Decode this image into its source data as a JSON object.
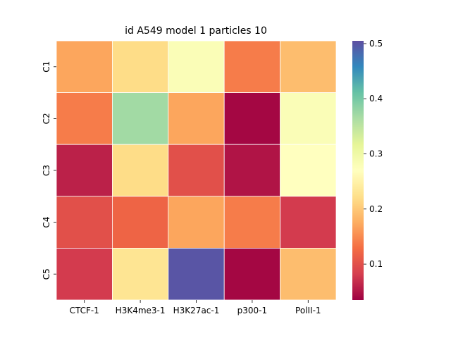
{
  "chart_data": {
    "type": "heatmap",
    "title": "id A549 model 1 particles 10",
    "xlabel": "",
    "ylabel": "",
    "x_categories": [
      "CTCF-1",
      "H3K4me3-1",
      "H3K27ac-1",
      "p300-1",
      "PolII-1"
    ],
    "y_categories": [
      "C1",
      "C2",
      "C3",
      "C4",
      "C5"
    ],
    "values": [
      [
        0.17,
        0.22,
        0.28,
        0.14,
        0.19
      ],
      [
        0.14,
        0.37,
        0.17,
        0.04,
        0.28
      ],
      [
        0.06,
        0.22,
        0.1,
        0.05,
        0.27
      ],
      [
        0.1,
        0.12,
        0.17,
        0.14,
        0.08
      ],
      [
        0.08,
        0.23,
        0.5,
        0.04,
        0.19
      ]
    ],
    "colorbar": {
      "min": 0.035,
      "max": 0.505,
      "ticks": [
        0.1,
        0.2,
        0.3,
        0.4,
        0.5
      ],
      "tick_labels": [
        "0.1",
        "0.2",
        "0.3",
        "0.4",
        "0.5"
      ],
      "colormap": "Spectral"
    },
    "grid": false,
    "legend": "colorbar-right"
  }
}
